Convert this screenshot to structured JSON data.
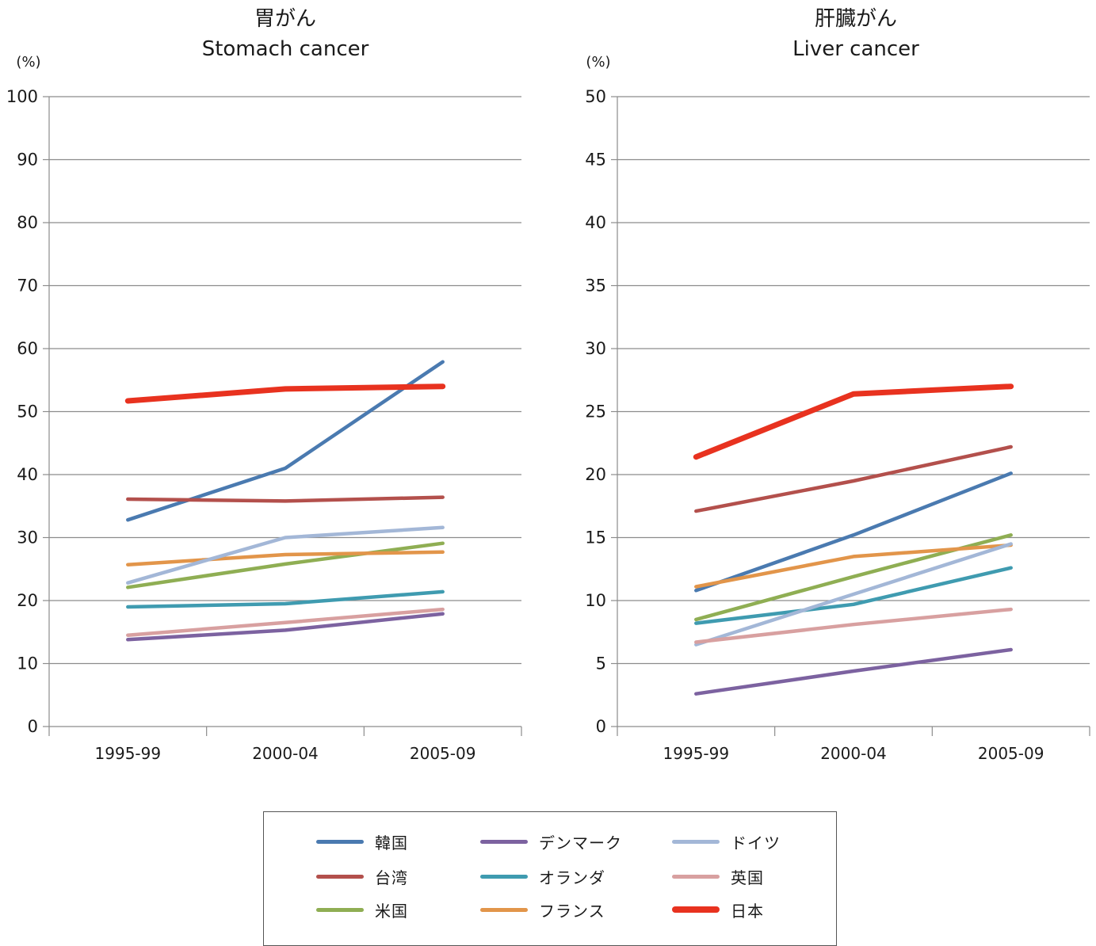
{
  "chart_data": [
    {
      "type": "line",
      "title": "胃がん",
      "subtitle": "Stomach cancer",
      "unit": "(%)",
      "categories": [
        "1995-99",
        "2000-04",
        "2005-09"
      ],
      "ylim": [
        0,
        100
      ],
      "yticks": [
        "0",
        "10",
        "20",
        "30",
        "40",
        "50",
        "60",
        "70",
        "80",
        "90",
        "100"
      ],
      "grid": true,
      "series": [
        {
          "name": "韓国",
          "values": [
            32.8,
            41.0,
            57.9
          ]
        },
        {
          "name": "台湾",
          "values": [
            36.1,
            35.8,
            36.4
          ]
        },
        {
          "name": "米国",
          "values": [
            22.1,
            25.8,
            29.1
          ]
        },
        {
          "name": "デンマーク",
          "values": [
            13.8,
            15.3,
            17.9
          ]
        },
        {
          "name": "オランダ",
          "values": [
            19.0,
            19.5,
            21.4
          ]
        },
        {
          "name": "フランス",
          "values": [
            25.7,
            27.3,
            27.7
          ]
        },
        {
          "name": "ドイツ",
          "values": [
            22.8,
            30.0,
            31.6
          ]
        },
        {
          "name": "英国",
          "values": [
            14.5,
            16.5,
            18.6
          ]
        },
        {
          "name": "日本",
          "values": [
            51.7,
            53.6,
            54.0
          ]
        }
      ]
    },
    {
      "type": "line",
      "title": "肝臓がん",
      "subtitle": "Liver cancer",
      "unit": "(%)",
      "categories": [
        "1995-99",
        "2000-04",
        "2005-09"
      ],
      "ylim": [
        0,
        50
      ],
      "yticks": [
        "0",
        "5",
        "10",
        "15",
        "20",
        "25",
        "30",
        "35",
        "40",
        "45",
        "50"
      ],
      "grid": true,
      "series": [
        {
          "name": "韓国",
          "values": [
            10.8,
            15.2,
            20.1
          ]
        },
        {
          "name": "台湾",
          "values": [
            17.1,
            19.5,
            22.2
          ]
        },
        {
          "name": "米国",
          "values": [
            8.5,
            11.9,
            15.2
          ]
        },
        {
          "name": "デンマーク",
          "values": [
            2.6,
            4.4,
            6.1
          ]
        },
        {
          "name": "オランダ",
          "values": [
            8.2,
            9.7,
            12.6
          ]
        },
        {
          "name": "フランス",
          "values": [
            11.1,
            13.5,
            14.4
          ]
        },
        {
          "name": "ドイツ",
          "values": [
            6.5,
            10.5,
            14.5
          ]
        },
        {
          "name": "英国",
          "values": [
            6.7,
            8.1,
            9.3
          ]
        },
        {
          "name": "日本",
          "values": [
            21.4,
            26.4,
            27.0
          ]
        }
      ]
    }
  ],
  "legend": {
    "placement": "bottom-center",
    "items": [
      {
        "name": "韓国",
        "color": "#4a7ab0"
      },
      {
        "name": "デンマーク",
        "color": "#7c62a0"
      },
      {
        "name": "ドイツ",
        "color": "#a3b7d7"
      },
      {
        "name": "台湾",
        "color": "#b3504c"
      },
      {
        "name": "オランダ",
        "color": "#3f9bb0"
      },
      {
        "name": "英国",
        "color": "#d8a0a0"
      },
      {
        "name": "米国",
        "color": "#8fae53"
      },
      {
        "name": "フランス",
        "color": "#e2954a"
      },
      {
        "name": "日本",
        "color": "#e8321f"
      }
    ]
  }
}
